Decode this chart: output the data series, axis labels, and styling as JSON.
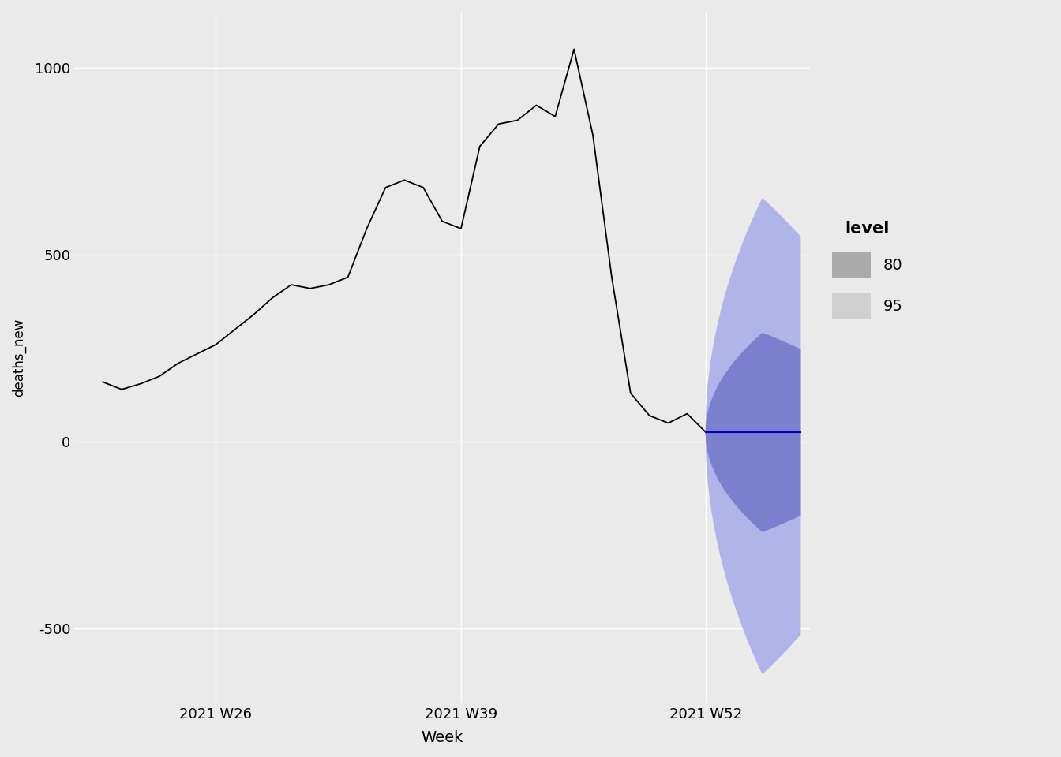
{
  "title": "",
  "xlabel": "Week",
  "ylabel": "deaths_new",
  "background_color": "#EAEAEA",
  "grid_color": "#FFFFFF",
  "historical_color": "#000000",
  "forecast_color": "#0000CC",
  "ci80_color": "#7B7FCC",
  "ci95_color": "#B0B4E8",
  "ylim": [
    -700,
    1150
  ],
  "xlim_start": 18.5,
  "xlim_end": 57.5,
  "x_ticks": [
    26,
    39,
    52
  ],
  "x_tick_labels": [
    "2021 W26",
    "2021 W39",
    "2021 W52"
  ],
  "y_ticks": [
    -500,
    0,
    500,
    1000
  ],
  "historical_x": [
    20,
    21,
    22,
    23,
    24,
    25,
    26,
    27,
    28,
    29,
    30,
    31,
    32,
    33,
    34,
    35,
    36,
    37,
    38,
    39,
    40,
    41,
    42,
    43,
    44,
    45,
    46,
    47,
    48,
    49,
    50,
    51,
    52
  ],
  "historical_y": [
    160,
    140,
    155,
    175,
    210,
    235,
    260,
    300,
    340,
    385,
    420,
    410,
    420,
    440,
    570,
    680,
    700,
    680,
    590,
    570,
    790,
    850,
    860,
    900,
    870,
    1050,
    820,
    440,
    130,
    70,
    50,
    75,
    25
  ],
  "forecast_x_start": 52,
  "forecast_x_peak": 55.0,
  "forecast_x_end": 57.0,
  "forecast_point": 25,
  "ci80_upper_peak": 290,
  "ci80_lower_peak": -240,
  "ci95_upper_peak": 650,
  "ci95_lower_peak": -620,
  "legend_title": "level",
  "legend_80": "80",
  "legend_95": "95",
  "legend_80_color": "#AAAAAA",
  "legend_95_color": "#D0D0D0"
}
